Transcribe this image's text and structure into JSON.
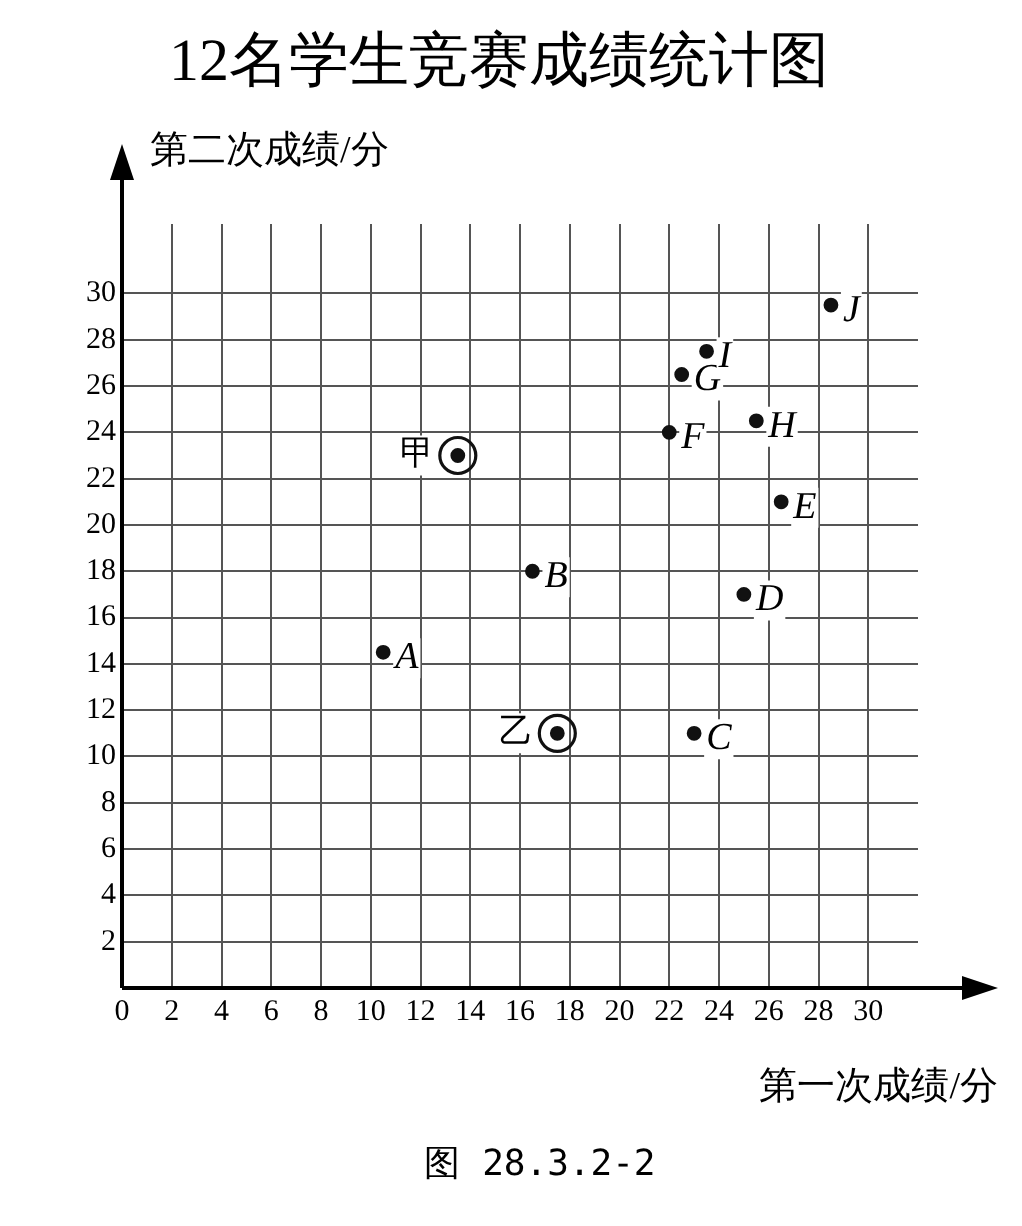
{
  "chart_data": {
    "type": "scatter",
    "title": "12名学生竞赛成绩统计图",
    "xlabel": "第一次成绩/分",
    "ylabel": "第二次成绩/分",
    "series": [
      {
        "color": "#111111",
        "marker": "circle",
        "x": [
          10.5,
          16.5,
          23,
          25,
          26.5,
          22,
          22.5,
          25.5,
          23.5,
          28.5
        ],
        "values": [
          14.5,
          18,
          11,
          17,
          21,
          24,
          26.5,
          24.5,
          27.5,
          29.5
        ]
      },
      {
        "color": "#111111",
        "marker": "circle",
        "x": [
          13.5,
          17.5
        ],
        "values": [
          23,
          11
        ]
      }
    ],
    "xlim": [
      0,
      32
    ],
    "ylim": [
      0,
      33
    ],
    "xticks": [
      0,
      2,
      4,
      6,
      8,
      10,
      12,
      14,
      16,
      18,
      20,
      22,
      24,
      26,
      28,
      30
    ],
    "yticks": [
      2,
      4,
      6,
      8,
      10,
      12,
      14,
      16,
      18,
      20,
      22,
      24,
      26,
      28,
      30
    ],
    "grid": true,
    "legend": false,
    "annotations": [
      {
        "text": "A",
        "x": 10.5,
        "y": 14.5
      },
      {
        "text": "B",
        "x": 16.5,
        "y": 18
      },
      {
        "text": "C",
        "x": 23,
        "y": 11
      },
      {
        "text": "D",
        "x": 25,
        "y": 17
      },
      {
        "text": "E",
        "x": 26.5,
        "y": 21
      },
      {
        "text": "F",
        "x": 22,
        "y": 24
      },
      {
        "text": "G",
        "x": 22.5,
        "y": 26.5
      },
      {
        "text": "H",
        "x": 25.5,
        "y": 24.5
      },
      {
        "text": "I",
        "x": 23.5,
        "y": 27.5
      },
      {
        "text": "J",
        "x": 28.5,
        "y": 29.5
      },
      {
        "text": "甲",
        "x": 13.5,
        "y": 23
      },
      {
        "text": "乙",
        "x": 17.5,
        "y": 11
      },
      "图 28.3.2-2"
    ]
  }
}
